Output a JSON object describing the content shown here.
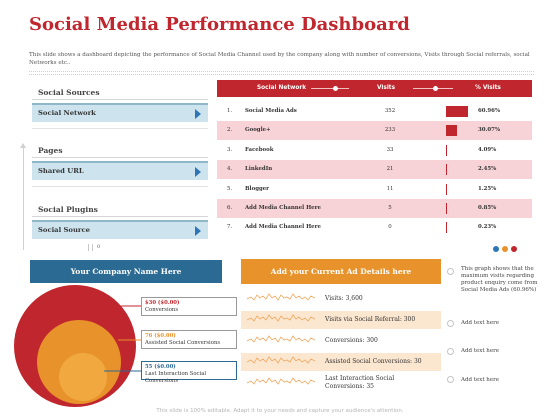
{
  "title": "Social Media Performance Dashboard",
  "subtitle": "This slide shows a dashboard depicting the performance of Social Media Channel used by the company along with number of conversions, Visits through Social referrals, social Networks etc..",
  "left": {
    "sections": [
      {
        "heading": "Social Sources",
        "item": "Social Network"
      },
      {
        "heading": "Pages",
        "item": "Shared URL"
      },
      {
        "heading": "Social Plugins",
        "item": "Social Source"
      }
    ],
    "axis_zero": "0"
  },
  "table": {
    "headers": {
      "network": "Social Network",
      "visits": "Visits",
      "pct": "% Visits"
    },
    "rows": [
      {
        "num": "1.",
        "network": "Social Media Ads",
        "visits": "352",
        "pct": "60.96%",
        "share": 60.96
      },
      {
        "num": "2.",
        "network": "Google+",
        "visits": "233",
        "pct": "30.07%",
        "share": 30.07
      },
      {
        "num": "3.",
        "network": "Facebook",
        "visits": "33",
        "pct": "4.09%",
        "share": 4.09
      },
      {
        "num": "4.",
        "network": "LinkedIn",
        "visits": "21",
        "pct": "2.45%",
        "share": 2.45
      },
      {
        "num": "5.",
        "network": "Blogger",
        "visits": "11",
        "pct": "1.25%",
        "share": 1.25
      },
      {
        "num": "6.",
        "network": "Add Media Channel Here",
        "visits": "5",
        "pct": "0.85%",
        "share": 0.85
      },
      {
        "num": "7.",
        "network": "Add Media Channel Here",
        "visits": "0",
        "pct": "0.23%",
        "share": 0.23
      }
    ],
    "dot_colors": [
      "#2f75b5",
      "#e8922b",
      "#c0262d"
    ]
  },
  "company": {
    "title": "Your Company Name Here",
    "boxes": [
      {
        "value": "$30 ($0.00)",
        "label": "Conversions",
        "color": "#c0262d"
      },
      {
        "value": "76 ($0.00)",
        "label": "Assisted Social Conversions",
        "color": "#e8922b"
      },
      {
        "value": "55 ($0.00)",
        "label": "Last Interaction Social Conversions",
        "color": "#2b6a93"
      }
    ]
  },
  "ad": {
    "title": "Add your Current Ad Details here",
    "rows": [
      {
        "text": "Visits: 3,600"
      },
      {
        "text": "Visits via Social Referral: 300"
      },
      {
        "text": "Conversions: 300"
      },
      {
        "text": "Assisted Social Conversions: 30"
      },
      {
        "text": "Last Interaction Social Conversions: 35"
      }
    ]
  },
  "notes": [
    "This graph shows that the maximum visits regarding product enquiry come from Social Media Ads (60.96%)",
    "Add text here",
    "Add text here",
    "Add text here"
  ],
  "footer": "This slide is 100% editable. Adapt it to your needs and capture your audience's attention."
}
